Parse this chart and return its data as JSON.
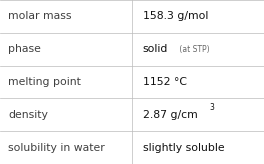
{
  "rows": [
    {
      "label": "molar mass",
      "value": "158.3 g/mol",
      "type": "normal"
    },
    {
      "label": "phase",
      "value": "solid",
      "value_suffix": " (at STP)",
      "type": "phase"
    },
    {
      "label": "melting point",
      "value": "1152 °C",
      "type": "normal"
    },
    {
      "label": "density",
      "value": "2.87 g/cm",
      "superscript": "3",
      "type": "density"
    },
    {
      "label": "solubility in water",
      "value": "slightly soluble",
      "type": "normal"
    }
  ],
  "col_split": 0.5,
  "background_color": "#ffffff",
  "line_color": "#bbbbbb",
  "label_font_size": 7.8,
  "value_font_size": 7.8,
  "label_color": "#404040",
  "value_color": "#111111",
  "suffix_font_size": 5.5,
  "suffix_color": "#666666",
  "super_font_size": 5.5
}
